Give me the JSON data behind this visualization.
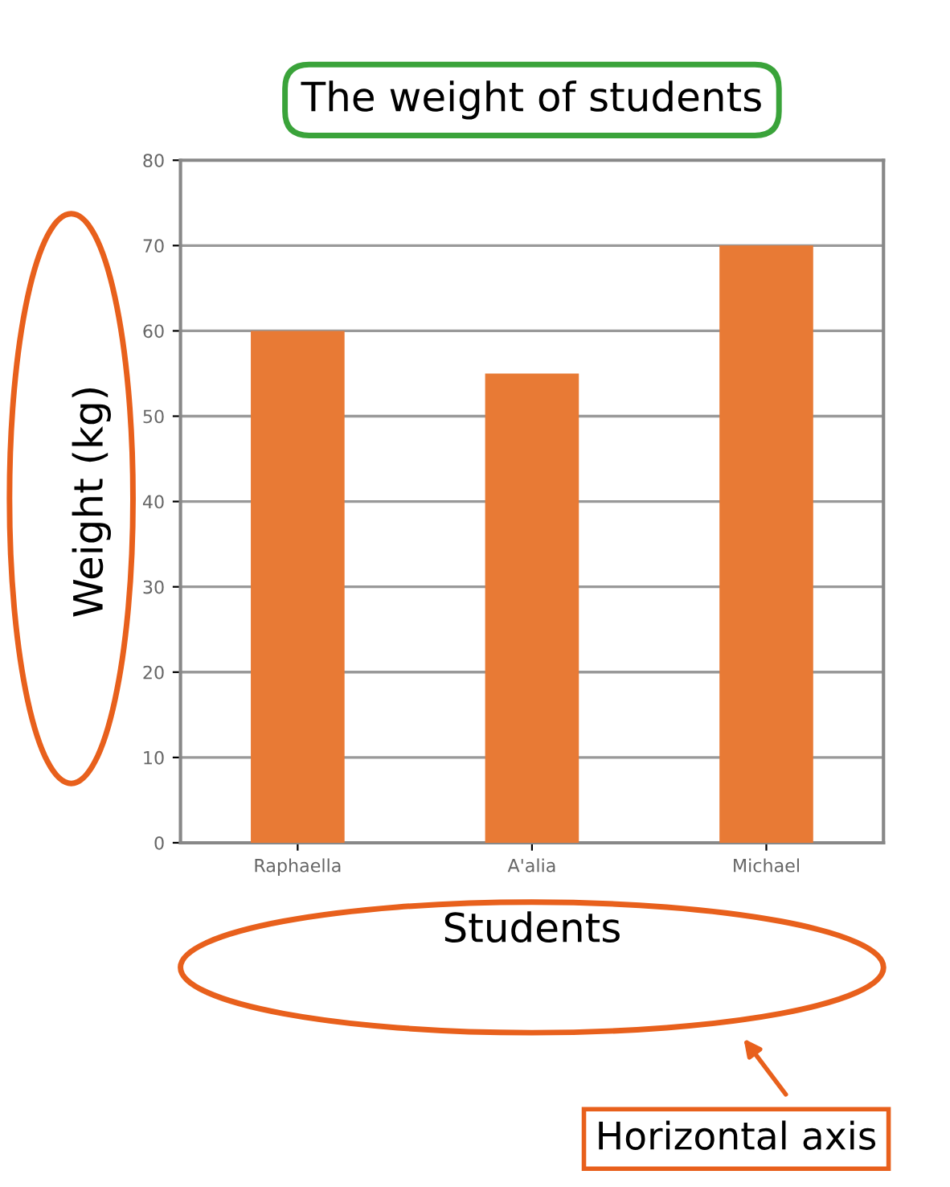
{
  "chart_data": {
    "type": "bar",
    "title": "The weight of students",
    "xlabel": "Students",
    "ylabel": "Weight (kg)",
    "categories": [
      "Raphaella",
      "A'alia",
      "Michael"
    ],
    "values": [
      60,
      55,
      70
    ],
    "color": "#e87a35",
    "ylim": [
      0,
      80
    ],
    "yticks": [
      0,
      10,
      20,
      30,
      40,
      50,
      60,
      70,
      80
    ],
    "grid": "y",
    "annotations": [
      "Horizontal axis"
    ]
  }
}
